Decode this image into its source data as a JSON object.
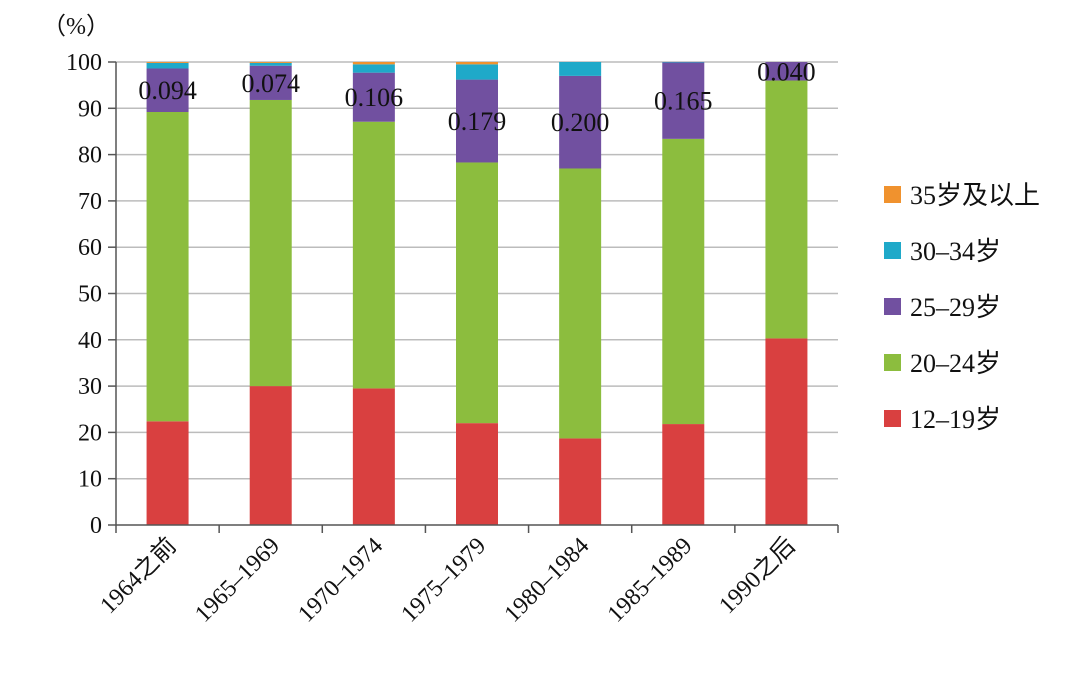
{
  "chart_data": {
    "type": "bar",
    "stacked": true,
    "unit_label": "（%）",
    "ylim": [
      0,
      100
    ],
    "y_ticks": [
      "0",
      "10",
      "20",
      "30",
      "40",
      "50",
      "60",
      "70",
      "80",
      "90",
      "100"
    ],
    "categories": [
      "1964之前",
      "1965–1969",
      "1970–1974",
      "1975–1979",
      "1980–1984",
      "1985–1989",
      "1990之后"
    ],
    "series": [
      {
        "name": "12–19岁",
        "color": "#d94040",
        "values": [
          22.4,
          30.0,
          29.5,
          22.0,
          18.7,
          21.8,
          40.3
        ]
      },
      {
        "name": "20–24岁",
        "color": "#8cbd3e",
        "values": [
          66.8,
          61.8,
          57.6,
          56.3,
          58.3,
          61.6,
          55.7
        ]
      },
      {
        "name": "25–29岁",
        "color": "#7150a0",
        "values": [
          9.4,
          7.4,
          10.6,
          17.9,
          20.0,
          16.5,
          4.0
        ]
      },
      {
        "name": "30–34岁",
        "color": "#1fa9c9",
        "values": [
          1.2,
          0.6,
          1.8,
          3.3,
          3.0,
          0.1,
          0.0
        ]
      },
      {
        "name": "35岁及以上",
        "color": "#f0922e",
        "values": [
          0.2,
          0.2,
          0.5,
          0.5,
          0.0,
          0.0,
          0.0
        ]
      }
    ],
    "data_labels": [
      "0.094",
      "0.074",
      "0.106",
      "0.179",
      "0.200",
      "0.165",
      "0.040"
    ],
    "legend_order": [
      "35岁及以上",
      "30–34岁",
      "25–29岁",
      "20–24岁",
      "12–19岁"
    ],
    "legend_position": "right",
    "grid": true
  }
}
